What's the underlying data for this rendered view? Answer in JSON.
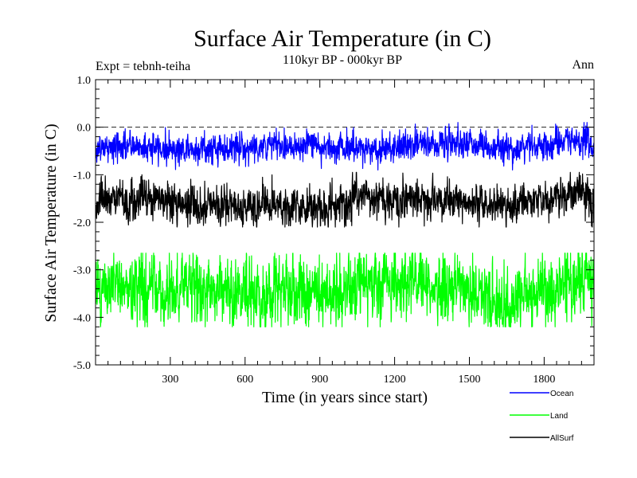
{
  "chart_data": {
    "type": "line",
    "title": "Surface Air Temperature (in C)",
    "subtitle": "110kyr BP - 000kyr BP",
    "experiment_label": "Expt = tebnh-teiha",
    "season_label": "Ann",
    "xlabel": "Time (in years since start)",
    "ylabel": "Surface Air Temperature (in C)",
    "xlim": [
      0,
      2000
    ],
    "ylim": [
      -5.0,
      1.0
    ],
    "x_ticks": [
      300,
      600,
      900,
      1200,
      1500,
      1800
    ],
    "x_tick_labels": [
      "300",
      "600",
      "900",
      "1200",
      "1500",
      "1800"
    ],
    "y_ticks": [
      1.0,
      0.0,
      -1.0,
      -2.0,
      -3.0,
      -4.0,
      -5.0
    ],
    "y_tick_labels": [
      "1.0",
      "0.0",
      "-1.0",
      "-2.0",
      "-3.0",
      "-4.0",
      "-5.0"
    ],
    "reference_line": {
      "y": 0.0,
      "style": "dashed"
    },
    "grid": false,
    "legend_position": "bottom-right",
    "series": [
      {
        "name": "Ocean",
        "color": "#0000ff",
        "mean": -0.45,
        "variability": 0.15,
        "approx_min": -0.9,
        "approx_max": 0.1,
        "samples": [
          {
            "x": 0,
            "y": -0.45
          },
          {
            "x": 150,
            "y": -0.3
          },
          {
            "x": 280,
            "y": -0.45
          },
          {
            "x": 430,
            "y": -0.5
          },
          {
            "x": 830,
            "y": -0.2
          },
          {
            "x": 1100,
            "y": -0.5
          },
          {
            "x": 1450,
            "y": 0.0
          },
          {
            "x": 1650,
            "y": -0.5
          },
          {
            "x": 1950,
            "y": 0.05
          },
          {
            "x": 2000,
            "y": -0.5
          }
        ]
      },
      {
        "name": "AllSurf",
        "color": "#000000",
        "mean": -1.6,
        "variability": 0.2,
        "approx_min": -2.1,
        "approx_max": -0.95,
        "samples": [
          {
            "x": 0,
            "y": -1.6
          },
          {
            "x": 150,
            "y": -1.2
          },
          {
            "x": 280,
            "y": -1.45
          },
          {
            "x": 430,
            "y": -1.7
          },
          {
            "x": 830,
            "y": -1.9
          },
          {
            "x": 1100,
            "y": -1.3
          },
          {
            "x": 1450,
            "y": -1.5
          },
          {
            "x": 1650,
            "y": -1.8
          },
          {
            "x": 1950,
            "y": -1.0
          },
          {
            "x": 2000,
            "y": -1.6
          }
        ]
      },
      {
        "name": "Land",
        "color": "#00ff00",
        "mean": -3.45,
        "variability": 0.35,
        "approx_min": -4.2,
        "approx_max": -2.65,
        "samples": [
          {
            "x": 0,
            "y": -3.5
          },
          {
            "x": 150,
            "y": -3.0
          },
          {
            "x": 280,
            "y": -3.6
          },
          {
            "x": 430,
            "y": -3.2
          },
          {
            "x": 830,
            "y": -3.8
          },
          {
            "x": 1100,
            "y": -2.7
          },
          {
            "x": 1450,
            "y": -3.3
          },
          {
            "x": 1650,
            "y": -4.1
          },
          {
            "x": 1950,
            "y": -2.8
          },
          {
            "x": 2000,
            "y": -3.5
          }
        ]
      }
    ],
    "legend": [
      {
        "name": "Ocean",
        "color": "#0000ff"
      },
      {
        "name": "Land",
        "color": "#00ff00"
      },
      {
        "name": "AllSurf",
        "color": "#000000"
      }
    ]
  }
}
